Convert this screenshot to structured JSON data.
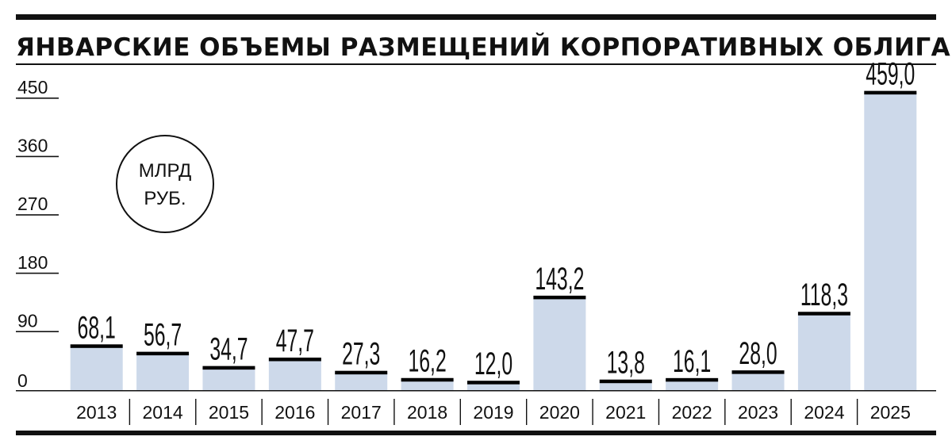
{
  "chart_data": {
    "type": "bar",
    "title": "ЯНВАРСКИЕ ОБЪЕМЫ РАЗМЕЩЕНИЙ КОРПОРАТИВНЫХ ОБЛИГАЦИЙ",
    "unit": [
      "МЛРД",
      "РУБ."
    ],
    "categories": [
      "2013",
      "2014",
      "2015",
      "2016",
      "2017",
      "2018",
      "2019",
      "2020",
      "2021",
      "2022",
      "2023",
      "2024",
      "2025"
    ],
    "values": [
      68.1,
      56.7,
      34.7,
      47.7,
      27.3,
      16.2,
      12.0,
      143.2,
      13.8,
      16.1,
      28.0,
      118.3,
      459.0
    ],
    "value_labels": [
      "68,1",
      "56,7",
      "34,7",
      "47,7",
      "27,3",
      "16,2",
      "12,0",
      "143,2",
      "13,8",
      "16,1",
      "28,0",
      "118,3",
      "459,0"
    ],
    "yticks": [
      "0",
      "90",
      "180",
      "270",
      "360",
      "450"
    ],
    "ylim": [
      0,
      450
    ],
    "bar_color": "#cdd9ea",
    "cap_color": "#000000"
  }
}
